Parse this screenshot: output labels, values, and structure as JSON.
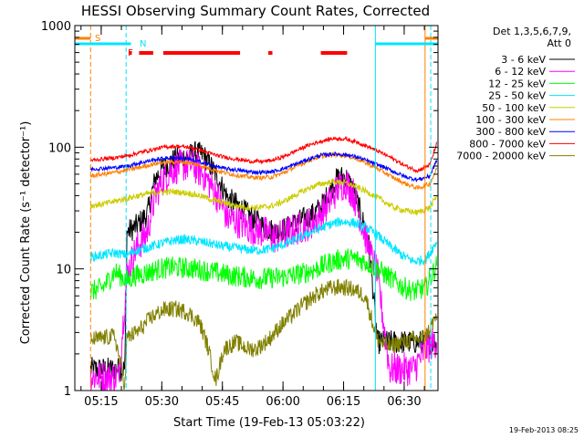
{
  "chart_data": {
    "type": "line",
    "title": "HESSI Observing Summary Count Rates, Corrected",
    "xlabel": "Start Time (19-Feb-13 05:03:22)",
    "ylabel": "Corrected Count Rate (s⁻¹ detector⁻¹)",
    "yscale": "log",
    "ylim": [
      1,
      1000
    ],
    "xlim_minutes": [
      5.1,
      95.0
    ],
    "x_tick_labels": [
      "05:15",
      "05:30",
      "05:45",
      "06:00",
      "06:15",
      "06:30"
    ],
    "x_tick_minutes": [
      11.63,
      26.63,
      41.63,
      56.63,
      71.63,
      86.63
    ],
    "y_tick_labels": [
      "1",
      "10",
      "100",
      "1000"
    ],
    "y_tick_values": [
      1,
      10,
      100,
      1000
    ],
    "legend_header": [
      "Det 1,3,5,6,7,9,",
      "Att 0"
    ],
    "legend_position": "right",
    "footer_date": "19-Feb-2013 08:25",
    "flags": {
      "S": {
        "label": "S",
        "color": "#ff8000",
        "spans": [
          [
            5.1,
            9.0
          ],
          [
            91.8,
            95.0
          ]
        ]
      },
      "N": {
        "label": "N",
        "color": "#00e5ff",
        "spans": [
          [
            5.1,
            19.0
          ],
          [
            79.5,
            95.0
          ]
        ]
      },
      "F": {
        "label": "F",
        "color": "#ff0000",
        "spans": [
          [
            18.5,
            19.2
          ],
          [
            21.0,
            24.5
          ],
          [
            27.0,
            46.0
          ],
          [
            53.0,
            54.0
          ],
          [
            66.0,
            72.5
          ]
        ]
      }
    },
    "vertical_markers": [
      {
        "x": 9.0,
        "color": "#ff8000",
        "style": "dashed"
      },
      {
        "x": 17.8,
        "color": "#00e5ff",
        "style": "dashed"
      },
      {
        "x": 79.5,
        "color": "#00e5ff",
        "style": "solid"
      },
      {
        "x": 91.8,
        "color": "#ff8000",
        "style": "solid"
      },
      {
        "x": 93.2,
        "color": "#00e5ff",
        "style": "dashed"
      }
    ],
    "data_x_start": 9.0,
    "data_x_end": 94.8,
    "series": [
      {
        "name": "3 - 6 keV",
        "color": "#000000",
        "x": [
          17.5,
          18.0,
          20,
          23,
          25,
          27,
          30,
          33,
          35,
          37,
          40,
          43,
          45,
          48,
          52,
          55,
          58,
          61,
          64,
          66,
          68,
          70,
          72,
          74,
          76,
          78,
          80
        ],
        "y": [
          1.5,
          20,
          22,
          28,
          55,
          68,
          80,
          84,
          90,
          86,
          60,
          38,
          34,
          28,
          22,
          20,
          22,
          25,
          28,
          32,
          42,
          55,
          58,
          45,
          28,
          15,
          2.5
        ]
      },
      {
        "name": "6 - 12 keV",
        "color": "#ff00ff",
        "x": [
          9,
          12,
          16,
          18,
          20,
          23,
          25,
          27,
          29,
          31,
          34,
          37,
          40,
          43,
          45,
          48,
          52,
          55,
          58,
          61,
          64,
          66,
          68,
          70,
          72,
          74,
          76,
          78,
          80,
          83,
          86,
          89,
          92,
          94.8
        ],
        "y": [
          1.3,
          1.3,
          1.3,
          9,
          14,
          20,
          40,
          55,
          65,
          70,
          72,
          60,
          42,
          26,
          25,
          22,
          20,
          18,
          20,
          22,
          24,
          28,
          35,
          45,
          52,
          42,
          25,
          14,
          9,
          1.5,
          1.5,
          1.5,
          2.2,
          2.6
        ]
      },
      {
        "name": "12 - 25 keV",
        "color": "#00ff00",
        "x": [
          9,
          12,
          15,
          18,
          20,
          23,
          26,
          29,
          32,
          35,
          38,
          41,
          44,
          47,
          50,
          53,
          56,
          59,
          62,
          65,
          68,
          71,
          74,
          77,
          80,
          83,
          86,
          89,
          92,
          94.8
        ],
        "y": [
          6.5,
          7.0,
          9.5,
          8.0,
          8.8,
          9.3,
          10.0,
          10.3,
          10.2,
          10.0,
          9.6,
          9.2,
          8.8,
          8.6,
          8.3,
          8.4,
          8.5,
          8.8,
          9.3,
          10.0,
          11.2,
          12.0,
          12.2,
          11.5,
          10.0,
          8.5,
          7.2,
          6.5,
          7.0,
          11.0
        ]
      },
      {
        "name": "25 - 50 keV",
        "color": "#00e5ff",
        "x": [
          9,
          12,
          15,
          18,
          20,
          23,
          26,
          29,
          32,
          35,
          38,
          41,
          44,
          47,
          50,
          53,
          56,
          59,
          62,
          65,
          68,
          71,
          74,
          77,
          80,
          83,
          86,
          89,
          92,
          94.8
        ],
        "y": [
          12.5,
          13.0,
          13.5,
          13.0,
          14.0,
          15.0,
          16.0,
          17.0,
          17.5,
          17.0,
          16.3,
          15.5,
          15.0,
          14.5,
          14.2,
          14.5,
          15.5,
          17.0,
          19.0,
          21.0,
          23.0,
          24.5,
          24.0,
          22.0,
          19.0,
          15.5,
          13.0,
          11.5,
          12.0,
          17.0
        ]
      },
      {
        "name": "50 - 100 keV",
        "color": "#cccc00",
        "x": [
          9,
          12,
          15,
          18,
          21,
          24,
          27,
          30,
          33,
          36,
          39,
          42,
          45,
          48,
          51,
          54,
          57,
          60,
          63,
          66,
          69,
          72,
          75,
          78,
          81,
          84,
          87,
          90,
          93,
          94.8
        ],
        "y": [
          33,
          34,
          36,
          38,
          40,
          42,
          43,
          43,
          42,
          40,
          37,
          35,
          33,
          32,
          32,
          33,
          36,
          41,
          46,
          50,
          52,
          51,
          47,
          42,
          37,
          32,
          30,
          29,
          32,
          40
        ]
      },
      {
        "name": "100 - 300 keV",
        "color": "#ff8000",
        "x": [
          9,
          12,
          15,
          18,
          21,
          24,
          27,
          30,
          33,
          36,
          39,
          42,
          45,
          48,
          51,
          54,
          57,
          60,
          63,
          66,
          69,
          72,
          75,
          78,
          81,
          84,
          87,
          90,
          93,
          94.8
        ],
        "y": [
          58,
          60,
          62,
          65,
          68,
          72,
          75,
          76,
          75,
          71,
          66,
          62,
          59,
          57,
          56,
          57,
          62,
          70,
          78,
          84,
          87,
          86,
          80,
          72,
          64,
          56,
          50,
          46,
          50,
          68
        ]
      },
      {
        "name": "300 - 800 keV",
        "color": "#0000ff",
        "x": [
          9,
          12,
          15,
          18,
          21,
          24,
          27,
          30,
          33,
          36,
          39,
          42,
          45,
          48,
          51,
          54,
          57,
          60,
          63,
          66,
          69,
          72,
          75,
          78,
          81,
          84,
          87,
          90,
          93,
          94.8
        ],
        "y": [
          66,
          67,
          68,
          70,
          74,
          78,
          81,
          82,
          80,
          76,
          71,
          67,
          65,
          63,
          62,
          63,
          67,
          73,
          80,
          86,
          88,
          87,
          83,
          76,
          70,
          63,
          57,
          54,
          58,
          80
        ]
      },
      {
        "name": "800 - 7000 keV",
        "color": "#ff0000",
        "x": [
          9,
          12,
          15,
          18,
          21,
          24,
          27,
          30,
          33,
          36,
          39,
          42,
          45,
          48,
          51,
          54,
          57,
          60,
          63,
          66,
          69,
          72,
          75,
          78,
          81,
          84,
          87,
          90,
          93,
          94.8
        ],
        "y": [
          78,
          80,
          82,
          85,
          90,
          95,
          100,
          102,
          100,
          95,
          88,
          83,
          80,
          77,
          76,
          78,
          84,
          94,
          104,
          112,
          118,
          117,
          110,
          100,
          90,
          80,
          70,
          64,
          72,
          110
        ]
      },
      {
        "name": "7000 - 20000 keV",
        "color": "#808000",
        "x": [
          9,
          12,
          15,
          17.5,
          18,
          21,
          24,
          27,
          30,
          33,
          36,
          38,
          40,
          42,
          45,
          48,
          50,
          53,
          56,
          59,
          62,
          65,
          68,
          71,
          74,
          77,
          80,
          83,
          86,
          89,
          92,
          94.8
        ],
        "y": [
          2.6,
          2.7,
          2.8,
          1.1,
          2.7,
          3.1,
          4.0,
          4.6,
          4.7,
          4.4,
          3.6,
          2.3,
          1.2,
          2.2,
          2.5,
          2.2,
          2.2,
          2.6,
          3.4,
          4.2,
          5.2,
          6.2,
          6.9,
          7.1,
          6.8,
          6.0,
          2.6,
          2.3,
          2.5,
          2.6,
          2.8,
          4.2
        ]
      }
    ]
  }
}
